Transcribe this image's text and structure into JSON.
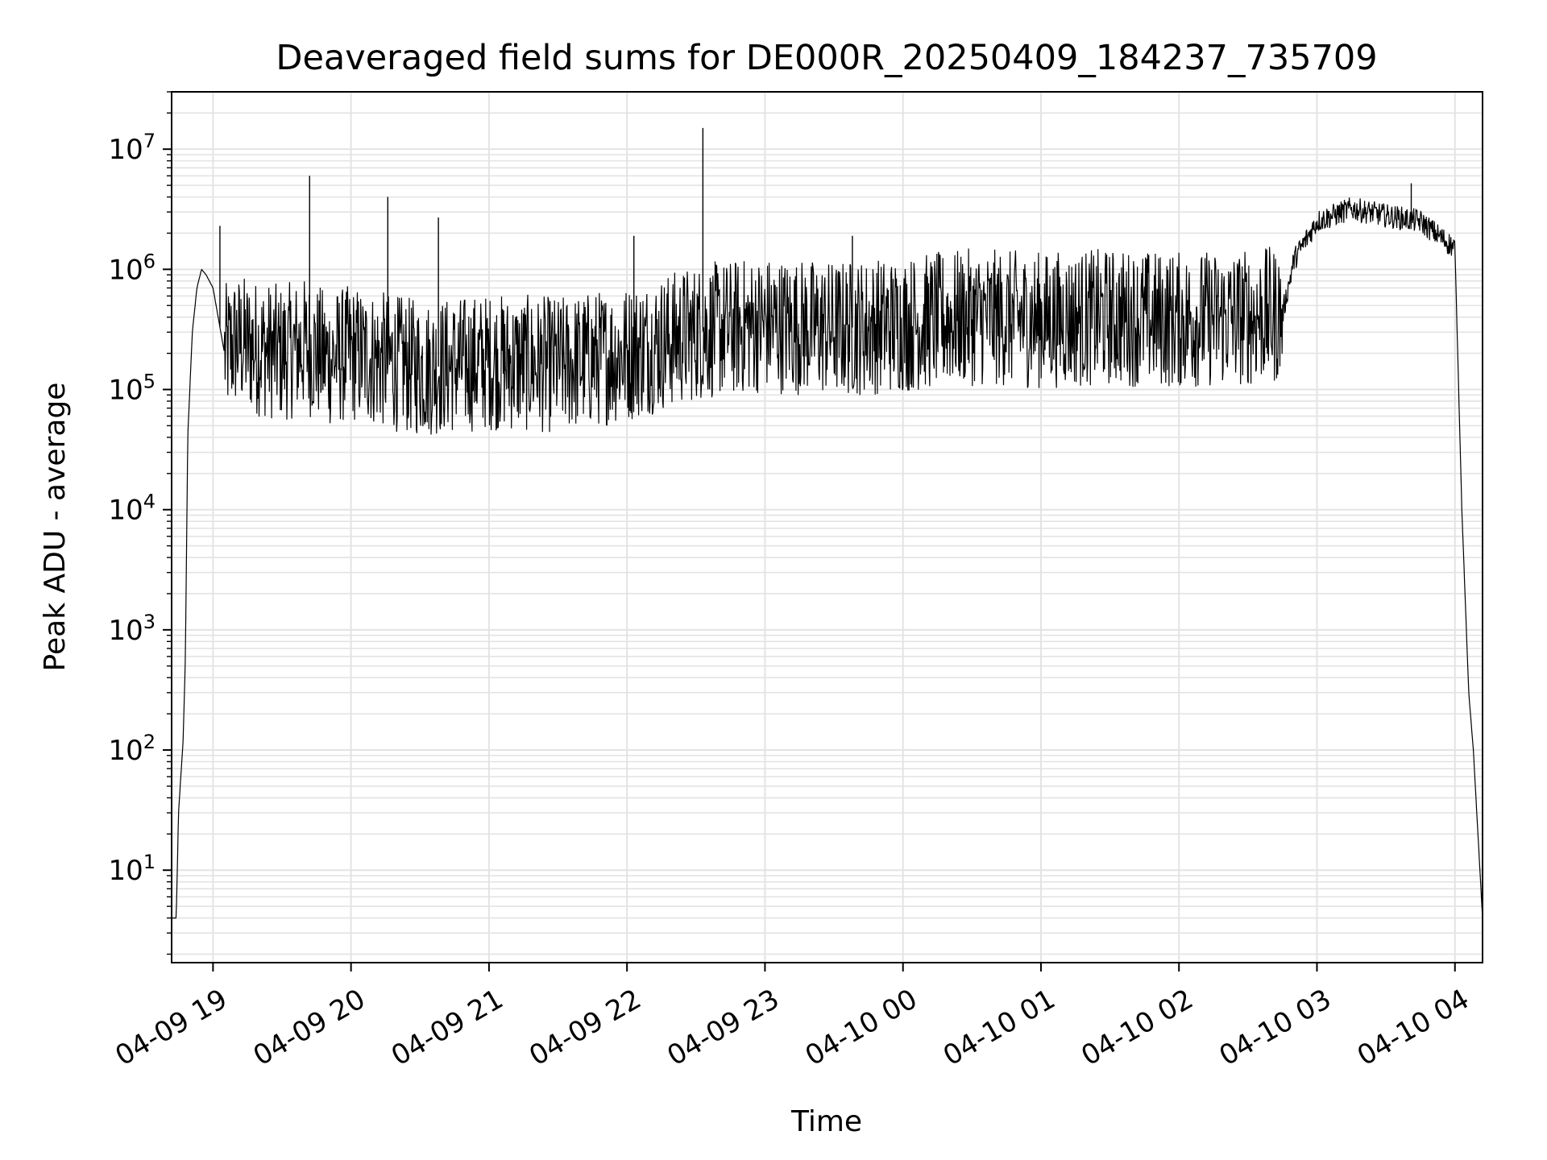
{
  "chart_data": {
    "type": "line",
    "title": "Deaveraged field sums for DE000R_20250409_184237_735709",
    "xlabel": "Time",
    "ylabel": "Peak ADU - average",
    "y_scale": "log",
    "ylim": [
      1.7,
      30000000
    ],
    "xlim": [
      "2025-04-09 18:42",
      "2025-04-10 04:12"
    ],
    "x_ticks": [
      "04-09 19",
      "04-09 20",
      "04-09 21",
      "04-09 22",
      "04-09 23",
      "04-10 00",
      "04-10 01",
      "04-10 02",
      "04-10 03",
      "04-10 04"
    ],
    "x_tick_values": [
      "2025-04-09 19:00",
      "2025-04-09 20:00",
      "2025-04-09 21:00",
      "2025-04-09 22:00",
      "2025-04-09 23:00",
      "2025-04-10 00:00",
      "2025-04-10 01:00",
      "2025-04-10 02:00",
      "2025-04-10 03:00",
      "2025-04-10 04:00"
    ],
    "y_ticks": [
      {
        "value": 10,
        "base": "10",
        "exp": "1"
      },
      {
        "value": 100,
        "base": "10",
        "exp": "2"
      },
      {
        "value": 1000,
        "base": "10",
        "exp": "3"
      },
      {
        "value": 10000,
        "base": "10",
        "exp": "4"
      },
      {
        "value": 100000,
        "base": "10",
        "exp": "5"
      },
      {
        "value": 1000000,
        "base": "10",
        "exp": "6"
      },
      {
        "value": 10000000,
        "base": "10",
        "exp": "7"
      }
    ],
    "grid": true,
    "line_color": "#000000",
    "grid_color": "#e3e3e3",
    "series": [
      {
        "x": [
          "2025-04-09 18:42",
          "2025-04-09 18:44",
          "2025-04-09 18:45",
          "2025-04-09 18:47",
          "2025-04-09 18:48",
          "2025-04-09 18:49",
          "2025-04-09 18:51",
          "2025-04-09 18:53",
          "2025-04-09 18:55",
          "2025-04-09 18:57",
          "2025-04-09 19:00",
          "2025-04-09 19:05",
          "2025-04-09 19:10",
          "2025-04-09 19:20",
          "2025-04-09 19:30",
          "2025-04-09 19:40",
          "2025-04-09 19:50",
          "2025-04-09 20:00",
          "2025-04-09 20:30",
          "2025-04-09 21:00",
          "2025-04-09 21:30",
          "2025-04-09 22:00",
          "2025-04-09 22:30",
          "2025-04-09 23:00",
          "2025-04-09 23:30",
          "2025-04-10 00:00",
          "2025-04-10 00:30",
          "2025-04-10 01:00",
          "2025-04-10 01:30",
          "2025-04-10 02:00",
          "2025-04-10 02:30",
          "2025-04-10 02:45",
          "2025-04-10 02:50",
          "2025-04-10 03:00",
          "2025-04-10 03:15",
          "2025-04-10 03:30",
          "2025-04-10 03:45",
          "2025-04-10 04:00",
          "2025-04-10 04:03",
          "2025-04-10 04:06",
          "2025-04-10 04:08",
          "2025-04-10 04:10",
          "2025-04-10 04:12"
        ],
        "y": [
          4,
          4,
          30,
          120,
          600,
          40000,
          300000,
          700000,
          1000000,
          900000,
          700000,
          200000,
          250000,
          220000,
          200000,
          230000,
          180000,
          200000,
          150000,
          170000,
          160000,
          200000,
          300000,
          350000,
          320000,
          350000,
          400000,
          380000,
          400000,
          380000,
          400000,
          420000,
          1200000,
          2500000,
          3200000,
          2800000,
          2500000,
          1500000,
          10000,
          300,
          100,
          20,
          4
        ]
      }
    ],
    "spikes": [
      {
        "x": "2025-04-09 19:03",
        "y": 2300000
      },
      {
        "x": "2025-04-09 19:42",
        "y": 6000000
      },
      {
        "x": "2025-04-09 20:16",
        "y": 4000000
      },
      {
        "x": "2025-04-09 20:38",
        "y": 2700000
      },
      {
        "x": "2025-04-09 22:33",
        "y": 15000000
      },
      {
        "x": "2025-04-09 22:03",
        "y": 1900000
      },
      {
        "x": "2025-04-09 23:38",
        "y": 1900000
      },
      {
        "x": "2025-04-10 03:41",
        "y": 5200000
      }
    ]
  }
}
